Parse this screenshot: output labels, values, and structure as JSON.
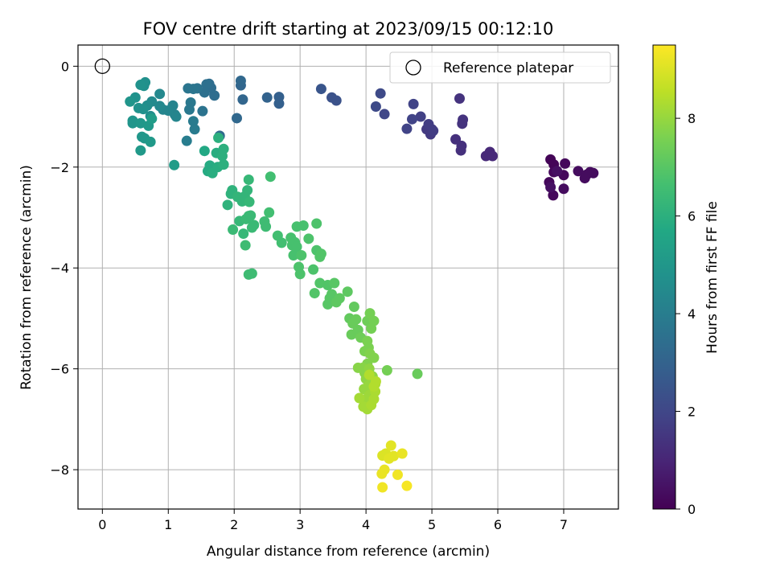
{
  "chart_data": {
    "type": "scatter",
    "title": "FOV centre drift starting at 2023/09/15 00:12:10",
    "xlabel": "Angular distance from reference (arcmin)",
    "ylabel": "Rotation from reference (arcmin)",
    "xlim": [
      -0.37,
      7.83
    ],
    "ylim": [
      -8.78,
      0.42
    ],
    "xticks": [
      0,
      1,
      2,
      3,
      4,
      5,
      6,
      7
    ],
    "yticks": [
      0,
      -2,
      -4,
      -6,
      -8
    ],
    "grid": true,
    "legend": {
      "position": "top-right",
      "entries": [
        {
          "label": "Reference platepar",
          "marker": "open-circle"
        }
      ]
    },
    "reference_point": {
      "x": 0,
      "y": 0
    },
    "colorbar": {
      "label": "Hours from first FF file",
      "range": [
        0,
        9.5
      ],
      "ticks": [
        0,
        2,
        4,
        6,
        8
      ],
      "colormap": "viridis"
    },
    "series": [
      {
        "points": [
          [
            6.8,
            -1.85,
            0.1
          ],
          [
            6.85,
            -1.95,
            0.1
          ],
          [
            7.02,
            -1.93,
            0.2
          ],
          [
            6.85,
            -2.1,
            0.2
          ],
          [
            6.78,
            -2.3,
            0.2
          ],
          [
            6.84,
            -2.56,
            0.2
          ],
          [
            7.0,
            -2.16,
            0.2
          ],
          [
            7.0,
            -2.43,
            0.3
          ],
          [
            7.22,
            -2.08,
            0.3
          ],
          [
            7.32,
            -2.22,
            0.3
          ],
          [
            7.4,
            -2.1,
            0.3
          ],
          [
            7.45,
            -2.12,
            0.3
          ],
          [
            6.8,
            -2.4,
            0.4
          ],
          [
            6.9,
            -2.08,
            0.4
          ],
          [
            7.35,
            -2.15,
            0.3
          ],
          [
            5.82,
            -1.78,
            1.1
          ],
          [
            5.88,
            -1.7,
            1.1
          ],
          [
            5.92,
            -1.78,
            1.1
          ],
          [
            5.45,
            -1.58,
            1.3
          ],
          [
            5.44,
            -1.67,
            1.3
          ],
          [
            5.36,
            -1.45,
            1.3
          ],
          [
            5.42,
            -0.64,
            1.4
          ],
          [
            5.46,
            -1.14,
            1.4
          ],
          [
            5.47,
            -1.06,
            1.4
          ],
          [
            5.0,
            -1.25,
            1.6
          ],
          [
            4.98,
            -1.35,
            1.6
          ],
          [
            4.92,
            -1.25,
            1.6
          ],
          [
            4.95,
            -1.15,
            1.7
          ],
          [
            5.02,
            -1.28,
            1.7
          ],
          [
            4.83,
            -1.0,
            1.8
          ],
          [
            4.7,
            -1.05,
            1.9
          ],
          [
            4.72,
            -0.75,
            1.9
          ],
          [
            4.62,
            -1.24,
            1.9
          ],
          [
            4.28,
            -0.95,
            2.0
          ],
          [
            4.22,
            -0.54,
            2.1
          ],
          [
            4.15,
            -0.8,
            2.1
          ],
          [
            3.55,
            -0.68,
            2.4
          ],
          [
            3.48,
            -0.62,
            2.4
          ],
          [
            3.32,
            -0.45,
            2.5
          ],
          [
            2.68,
            -0.74,
            2.9
          ],
          [
            2.68,
            -0.61,
            2.9
          ],
          [
            2.5,
            -0.62,
            3.0
          ],
          [
            2.13,
            -0.66,
            3.1
          ],
          [
            2.1,
            -0.38,
            3.1
          ],
          [
            2.1,
            -0.29,
            3.2
          ],
          [
            2.04,
            -1.03,
            3.2
          ],
          [
            1.78,
            -1.38,
            3.3
          ],
          [
            1.7,
            -0.58,
            3.4
          ],
          [
            1.65,
            -0.43,
            3.4
          ],
          [
            1.62,
            -0.35,
            3.4
          ],
          [
            1.58,
            -0.36,
            3.5
          ],
          [
            1.55,
            -0.52,
            3.5
          ],
          [
            1.52,
            -0.89,
            3.6
          ],
          [
            1.44,
            -0.44,
            3.6
          ],
          [
            1.38,
            -0.45,
            3.7
          ],
          [
            1.3,
            -0.44,
            3.7
          ],
          [
            1.32,
            -0.86,
            3.8
          ],
          [
            1.34,
            -0.72,
            3.8
          ],
          [
            1.38,
            -1.09,
            3.9
          ],
          [
            1.4,
            -1.25,
            3.9
          ],
          [
            1.28,
            -1.48,
            4.0
          ],
          [
            1.1,
            -0.96,
            4.2
          ],
          [
            1.07,
            -0.78,
            4.2
          ],
          [
            1.0,
            -0.88,
            4.3
          ],
          [
            0.92,
            -0.86,
            4.3
          ],
          [
            0.87,
            -0.55,
            4.4
          ],
          [
            0.87,
            -0.79,
            4.4
          ],
          [
            0.75,
            -0.7,
            4.5
          ],
          [
            0.73,
            -0.99,
            4.6
          ],
          [
            0.68,
            -0.78,
            4.6
          ],
          [
            0.63,
            -0.39,
            4.7
          ],
          [
            0.65,
            -0.32,
            4.7
          ],
          [
            0.58,
            -0.37,
            4.8
          ],
          [
            0.55,
            -0.83,
            4.8
          ],
          [
            0.5,
            -0.62,
            4.8
          ],
          [
            0.42,
            -0.7,
            4.9
          ],
          [
            0.46,
            -1.08,
            4.9
          ],
          [
            0.46,
            -1.13,
            4.9
          ],
          [
            0.58,
            -1.13,
            5.0
          ],
          [
            0.6,
            -1.4,
            5.0
          ],
          [
            0.64,
            -1.43,
            5.0
          ],
          [
            0.58,
            -1.67,
            5.1
          ],
          [
            0.73,
            -1.5,
            5.1
          ],
          [
            0.7,
            -1.18,
            5.1
          ],
          [
            0.75,
            -1.04,
            5.2
          ],
          [
            1.09,
            -1.96,
            5.2
          ],
          [
            1.12,
            -1.0,
            4.3
          ],
          [
            0.62,
            -0.85,
            4.7
          ],
          [
            1.55,
            -1.68,
            5.7
          ],
          [
            1.6,
            -2.08,
            5.8
          ],
          [
            1.63,
            -1.97,
            5.8
          ],
          [
            1.67,
            -2.12,
            5.9
          ],
          [
            1.75,
            -2.0,
            5.9
          ],
          [
            1.73,
            -1.72,
            5.9
          ],
          [
            1.76,
            -1.42,
            6.0
          ],
          [
            1.82,
            -1.78,
            6.0
          ],
          [
            1.84,
            -1.64,
            6.0
          ],
          [
            1.84,
            -1.95,
            6.0
          ],
          [
            1.9,
            -2.75,
            6.1
          ],
          [
            1.95,
            -2.53,
            6.1
          ],
          [
            1.97,
            -2.46,
            6.1
          ],
          [
            2.05,
            -2.59,
            6.2
          ],
          [
            2.12,
            -2.68,
            6.2
          ],
          [
            2.16,
            -2.58,
            6.2
          ],
          [
            2.2,
            -2.46,
            6.2
          ],
          [
            2.22,
            -2.25,
            6.3
          ],
          [
            2.23,
            -2.69,
            6.3
          ],
          [
            2.08,
            -3.07,
            6.3
          ],
          [
            2.14,
            -3.32,
            6.3
          ],
          [
            2.18,
            -3.03,
            6.4
          ],
          [
            2.22,
            -2.97,
            6.4
          ],
          [
            2.27,
            -3.2,
            6.4
          ],
          [
            2.25,
            -2.96,
            6.4
          ],
          [
            2.3,
            -3.15,
            6.4
          ],
          [
            1.98,
            -3.24,
            6.4
          ],
          [
            2.17,
            -3.55,
            6.5
          ],
          [
            2.22,
            -4.13,
            6.5
          ],
          [
            2.27,
            -4.11,
            6.5
          ],
          [
            2.46,
            -3.08,
            6.5
          ],
          [
            2.48,
            -3.18,
            6.5
          ],
          [
            2.53,
            -2.9,
            6.6
          ],
          [
            2.55,
            -2.19,
            6.6
          ],
          [
            2.66,
            -3.36,
            6.6
          ],
          [
            2.72,
            -3.5,
            6.6
          ],
          [
            2.86,
            -3.4,
            6.7
          ],
          [
            2.88,
            -3.55,
            6.7
          ],
          [
            2.9,
            -3.75,
            6.7
          ],
          [
            2.92,
            -3.49,
            6.7
          ],
          [
            2.95,
            -3.58,
            6.7
          ],
          [
            2.95,
            -3.18,
            6.7
          ],
          [
            3.05,
            -3.16,
            6.7
          ],
          [
            3.02,
            -3.75,
            6.8
          ],
          [
            2.98,
            -3.98,
            6.8
          ],
          [
            3.0,
            -4.12,
            6.8
          ],
          [
            3.13,
            -3.42,
            6.8
          ],
          [
            3.25,
            -3.12,
            6.8
          ],
          [
            3.2,
            -4.03,
            6.8
          ],
          [
            3.25,
            -3.65,
            6.8
          ],
          [
            3.3,
            -3.78,
            6.9
          ],
          [
            3.32,
            -3.72,
            6.9
          ],
          [
            3.22,
            -4.5,
            6.9
          ],
          [
            3.3,
            -4.3,
            6.9
          ],
          [
            3.42,
            -4.34,
            6.9
          ],
          [
            3.45,
            -4.6,
            7.0
          ],
          [
            3.42,
            -4.72,
            7.0
          ],
          [
            3.48,
            -4.52,
            7.0
          ],
          [
            3.52,
            -4.3,
            7.0
          ],
          [
            3.55,
            -4.68,
            7.1
          ],
          [
            3.6,
            -4.6,
            7.1
          ],
          [
            3.72,
            -4.47,
            7.1
          ],
          [
            3.82,
            -4.77,
            7.2
          ],
          [
            3.75,
            -5.0,
            7.2
          ],
          [
            3.8,
            -5.1,
            7.3
          ],
          [
            3.78,
            -5.32,
            7.3
          ],
          [
            3.85,
            -5.02,
            7.3
          ],
          [
            3.88,
            -5.23,
            7.3
          ],
          [
            3.92,
            -5.38,
            7.4
          ],
          [
            4.02,
            -5.05,
            7.4
          ],
          [
            4.06,
            -4.9,
            7.5
          ],
          [
            4.12,
            -5.05,
            7.5
          ],
          [
            4.08,
            -5.2,
            7.5
          ],
          [
            4.02,
            -5.45,
            7.6
          ],
          [
            3.98,
            -5.65,
            7.6
          ],
          [
            4.04,
            -5.58,
            7.6
          ],
          [
            4.06,
            -5.7,
            7.7
          ],
          [
            4.12,
            -5.78,
            7.7
          ],
          [
            4.02,
            -5.9,
            7.7
          ],
          [
            3.95,
            -5.98,
            7.8
          ],
          [
            3.88,
            -5.98,
            7.8
          ],
          [
            3.98,
            -6.08,
            7.8
          ],
          [
            4.05,
            -6.0,
            7.9
          ],
          [
            4.1,
            -6.15,
            7.9
          ],
          [
            4.0,
            -6.2,
            7.9
          ],
          [
            4.04,
            -6.33,
            8.0
          ],
          [
            3.97,
            -6.4,
            8.0
          ],
          [
            4.1,
            -6.4,
            8.0
          ],
          [
            4.14,
            -6.3,
            8.1
          ],
          [
            4.05,
            -6.52,
            8.1
          ],
          [
            4.0,
            -6.6,
            8.1
          ],
          [
            3.9,
            -6.58,
            8.2
          ],
          [
            3.96,
            -6.75,
            8.2
          ],
          [
            4.02,
            -6.8,
            8.2
          ],
          [
            4.08,
            -6.72,
            8.3
          ],
          [
            4.12,
            -6.6,
            8.3
          ],
          [
            4.14,
            -6.45,
            8.3
          ],
          [
            4.12,
            -6.35,
            8.4
          ],
          [
            4.15,
            -6.25,
            8.4
          ],
          [
            4.05,
            -6.12,
            8.4
          ],
          [
            4.32,
            -6.03,
            7.5
          ],
          [
            4.78,
            -6.1,
            7.3
          ],
          [
            4.25,
            -7.72,
            9.0
          ],
          [
            4.3,
            -7.68,
            9.0
          ],
          [
            4.38,
            -7.52,
            9.1
          ],
          [
            4.42,
            -7.73,
            9.1
          ],
          [
            4.35,
            -7.78,
            9.1
          ],
          [
            4.55,
            -7.68,
            9.2
          ],
          [
            4.28,
            -8.0,
            9.2
          ],
          [
            4.24,
            -8.08,
            9.2
          ],
          [
            4.48,
            -8.1,
            9.3
          ],
          [
            4.25,
            -8.35,
            9.3
          ],
          [
            4.62,
            -8.32,
            9.4
          ]
        ]
      }
    ]
  }
}
